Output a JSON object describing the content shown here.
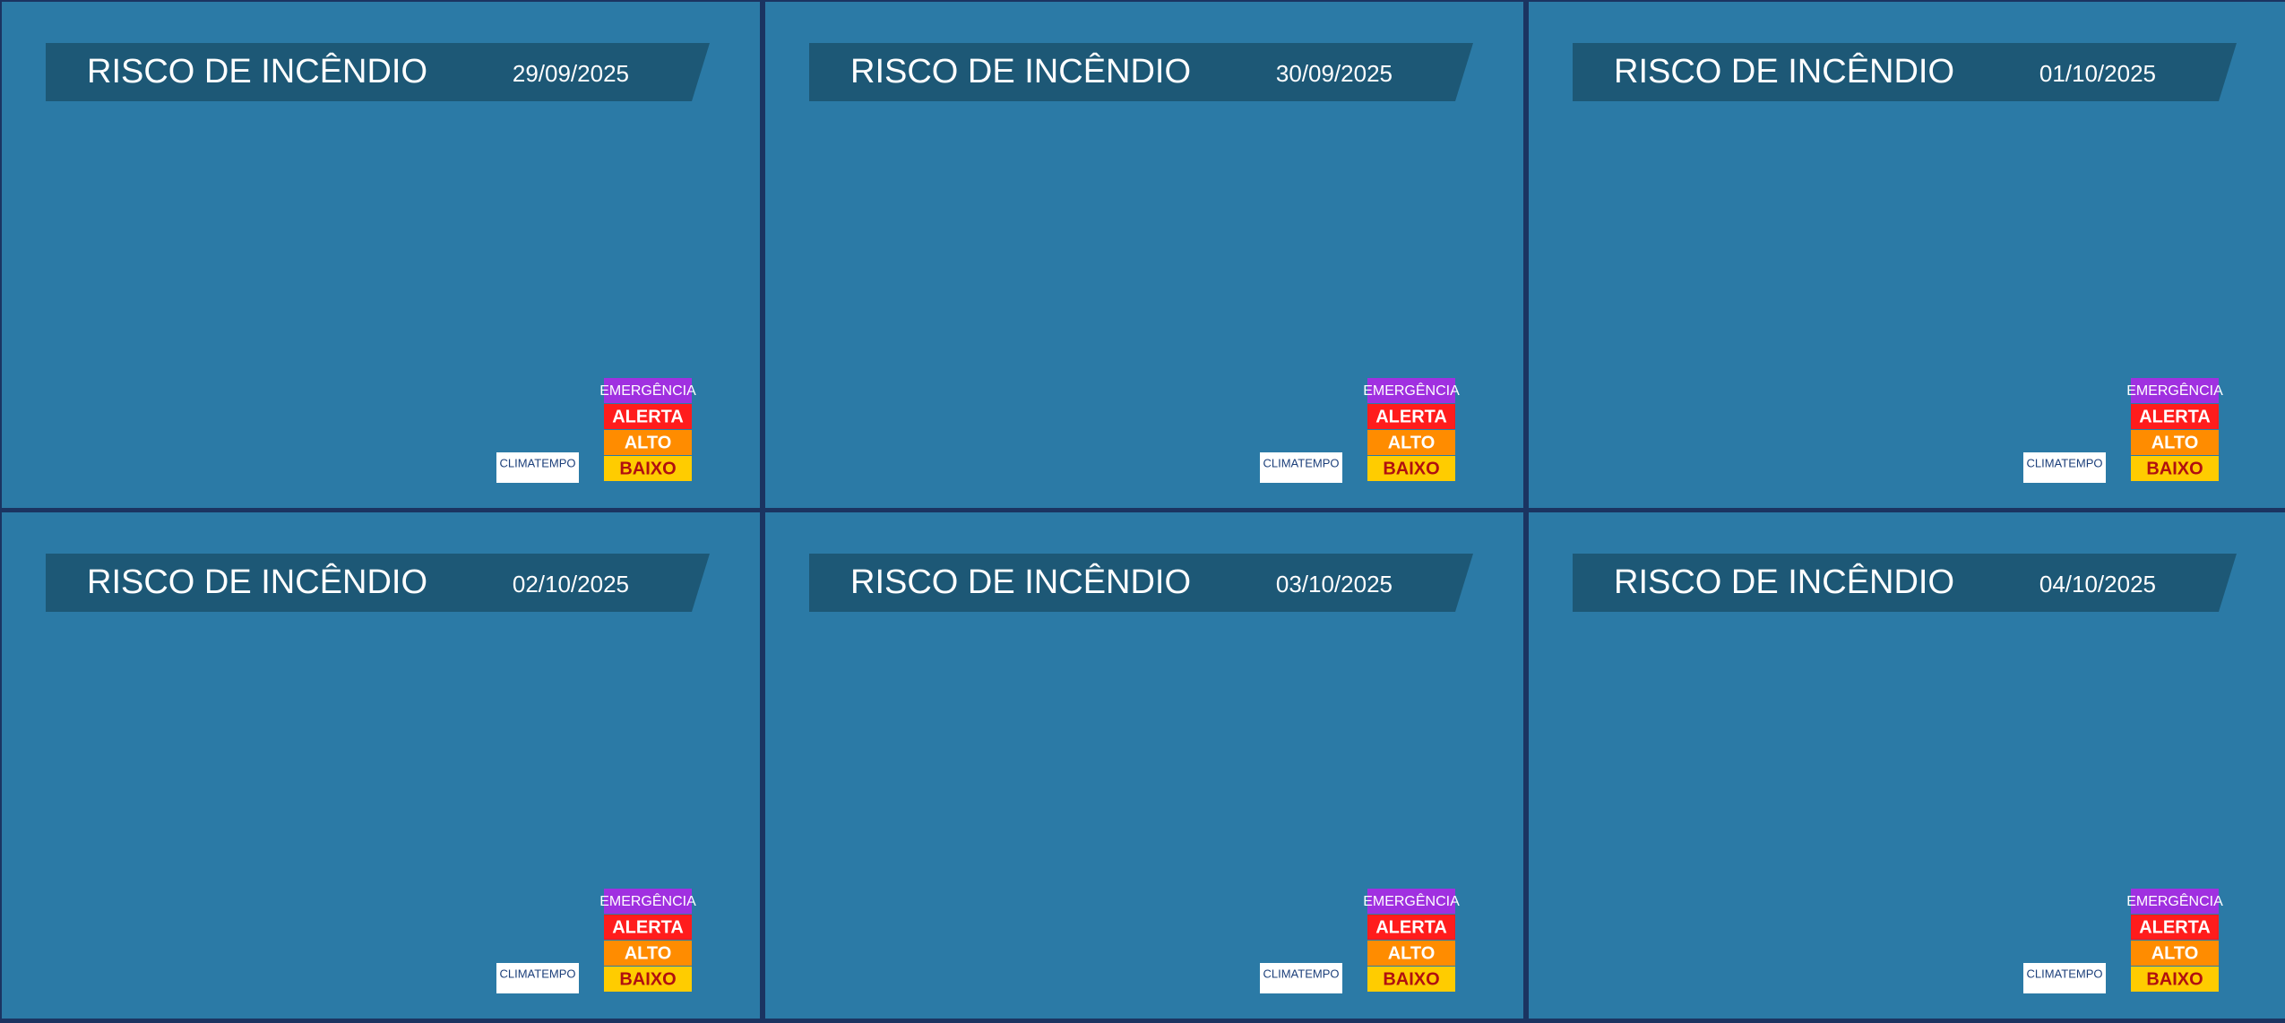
{
  "panels": [
    {
      "title": "RISCO DE INCÊNDIO",
      "date": "29/09/2025"
    },
    {
      "title": "RISCO DE INCÊNDIO",
      "date": "30/09/2025"
    },
    {
      "title": "RISCO DE INCÊNDIO",
      "date": "01/10/2025"
    },
    {
      "title": "RISCO DE INCÊNDIO",
      "date": "02/10/2025"
    },
    {
      "title": "RISCO DE INCÊNDIO",
      "date": "03/10/2025"
    },
    {
      "title": "RISCO DE INCÊNDIO",
      "date": "04/10/2025"
    }
  ],
  "legend": [
    {
      "label": "EMERGÊNCIA",
      "color": "#a030e0"
    },
    {
      "label": "ALERTA",
      "color": "#ff1c1c"
    },
    {
      "label": "ALTO",
      "color": "#ff8c00"
    },
    {
      "label": "BAIXO",
      "color": "#ffcc00"
    }
  ],
  "logo": "CLIMATEMPO"
}
